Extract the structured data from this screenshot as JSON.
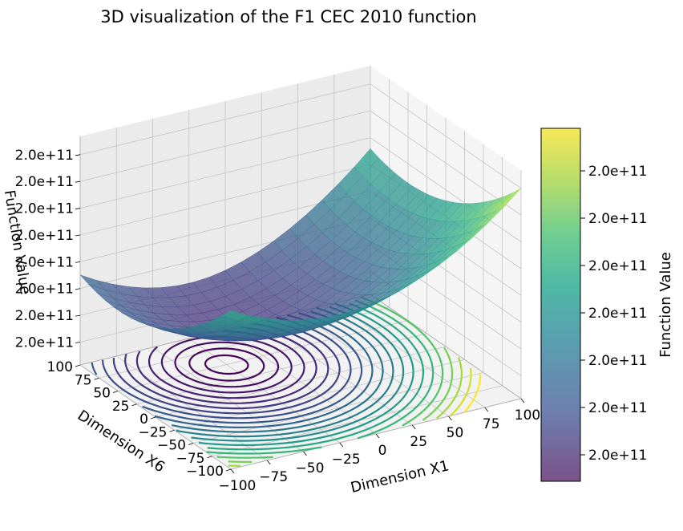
{
  "chart_data": {
    "type": "surface3d",
    "title": "3D visualization of the F1 CEC 2010 function",
    "xlabel": "Dimension X1",
    "ylabel": "Dimension X6",
    "zlabel": "Function Value",
    "xlim": [
      -100,
      100
    ],
    "ylim": [
      -100,
      100
    ],
    "x_ticks": [
      "−100",
      "−75",
      "−50",
      "−25",
      "0",
      "25",
      "50",
      "75",
      "100"
    ],
    "y_ticks": [
      "−100",
      "−75",
      "−50",
      "−25",
      "0",
      "25",
      "50",
      "75",
      "100"
    ],
    "z_ticks": [
      "2.0e+11",
      "2.0e+11",
      "2.0e+11",
      "2.0e+11",
      "2.0e+11",
      "2.0e+11",
      "2.0e+11",
      "2.0e+11"
    ],
    "surface": {
      "function": "shifted elliptic (F1 CEC 2010), varying X1 and X6",
      "colormap": "viridis",
      "alpha": 0.7
    },
    "contours_on_floor": true,
    "grid": true,
    "colorbar": {
      "label": "Function Value",
      "ticks": [
        "2.0e+11",
        "2.0e+11",
        "2.0e+11",
        "2.0e+11",
        "2.0e+11",
        "2.0e+11",
        "2.0e+11"
      ]
    }
  }
}
